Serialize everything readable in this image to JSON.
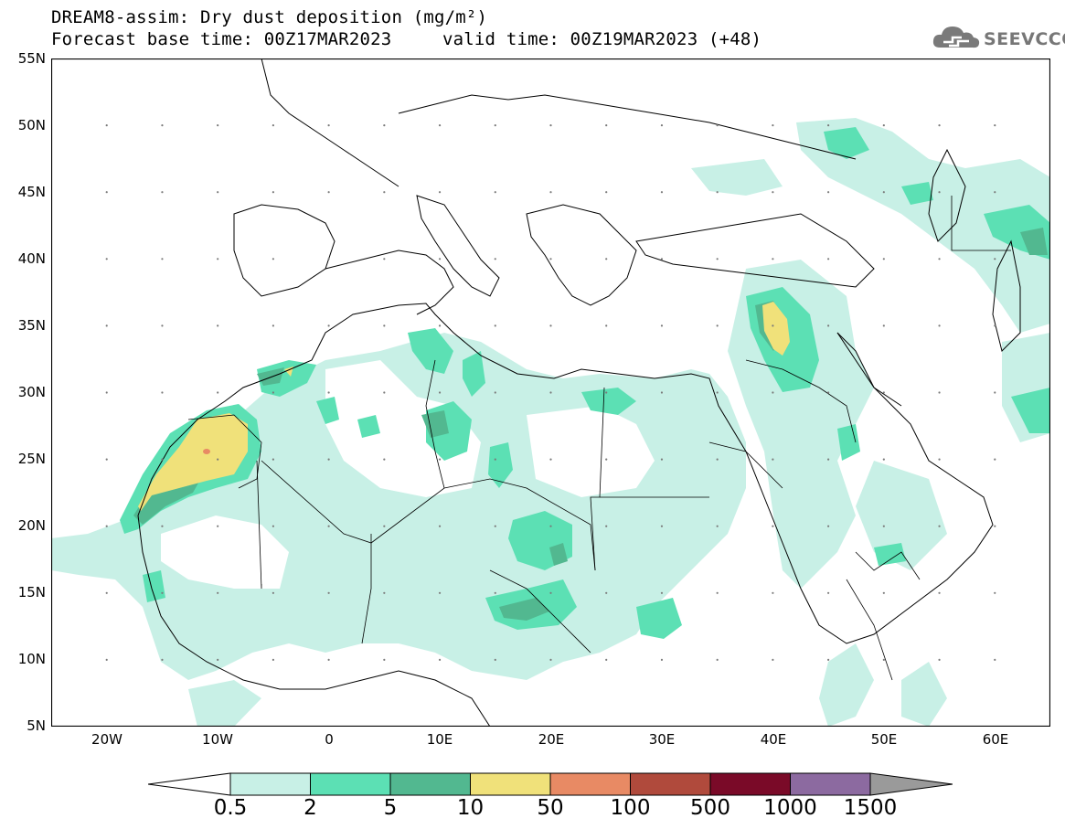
{
  "header": {
    "title": "DREAM8-assim: Dry dust deposition (mg/m²)",
    "base_time": "Forecast base time: 00Z17MAR2023",
    "valid_time": "valid time: 00Z19MAR2023 (+48)"
  },
  "logo": {
    "text": "SEEVCCC",
    "icon": "cloud-icon"
  },
  "map": {
    "lat_labels": [
      "55N",
      "50N",
      "45N",
      "40N",
      "35N",
      "30N",
      "25N",
      "20N",
      "15N",
      "10N",
      "5N"
    ],
    "lon_labels": [
      "20W",
      "10W",
      "0",
      "10E",
      "20E",
      "30E",
      "40E",
      "50E",
      "60E"
    ],
    "lat_range": [
      5,
      55
    ],
    "lon_range": [
      -25,
      65
    ],
    "grid": "dotted"
  },
  "colorbar": {
    "labels": [
      "0.5",
      "2",
      "5",
      "10",
      "50",
      "100",
      "500",
      "1000",
      "1500"
    ],
    "colors": [
      "#c8f0e6",
      "#5ce0b4",
      "#52b890",
      "#f0e17a",
      "#e88a64",
      "#b04a3c",
      "#7a0a28",
      "#8c6aa0",
      "#9a9a9a"
    ]
  },
  "colors": {
    "level1": "#c8f0e6",
    "level2": "#5ce0b4",
    "level3": "#52b890",
    "level4": "#f0e17a",
    "level5": "#e88a64"
  }
}
